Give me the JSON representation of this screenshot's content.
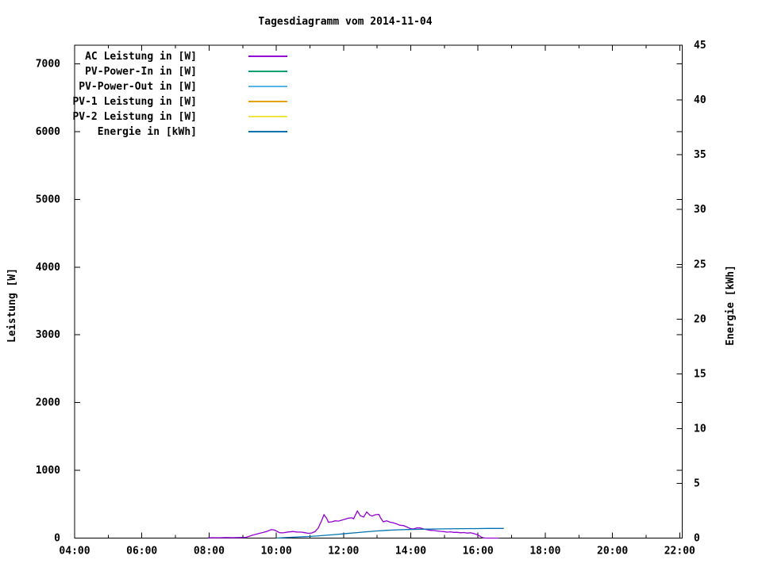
{
  "title": "Tagesdiagramm vom 2014-11-04",
  "chart_data": {
    "type": "line",
    "title": "Tagesdiagramm vom 2014-11-04",
    "grid": false,
    "legend_position": "top-left-inside",
    "x_axis": {
      "unit": "time HH:MM",
      "range_hours": [
        4,
        22.1
      ],
      "major_ticks": [
        "04:00",
        "06:00",
        "08:00",
        "10:00",
        "12:00",
        "14:00",
        "16:00",
        "18:00",
        "20:00",
        "22:00"
      ],
      "major_tick_hours": [
        4,
        6,
        8,
        10,
        12,
        14,
        16,
        18,
        20,
        22
      ],
      "minor_tick_hours": [
        5,
        7,
        9,
        11,
        13,
        15,
        17,
        19,
        21
      ]
    },
    "y_left": {
      "label": "Leistung [W]",
      "range": [
        0,
        7290
      ],
      "ticks": [
        0,
        1000,
        2000,
        3000,
        4000,
        5000,
        6000,
        7000
      ]
    },
    "y_right": {
      "label": "Energie [kWh]",
      "range": [
        0,
        45
      ],
      "ticks": [
        0,
        5,
        10,
        15,
        20,
        25,
        30,
        35,
        40,
        45
      ]
    },
    "series": [
      {
        "name": "AC Leistung in [W]",
        "color": "#9400d3",
        "axis": "left",
        "points": [
          [
            7.97,
            3
          ],
          [
            8.1,
            6
          ],
          [
            8.3,
            5
          ],
          [
            8.5,
            8
          ],
          [
            8.7,
            6
          ],
          [
            8.9,
            8
          ],
          [
            9.1,
            12
          ],
          [
            9.3,
            45
          ],
          [
            9.5,
            70
          ],
          [
            9.7,
            95
          ],
          [
            9.85,
            125
          ],
          [
            9.95,
            118
          ],
          [
            10.1,
            80
          ],
          [
            10.2,
            77
          ],
          [
            10.35,
            90
          ],
          [
            10.5,
            97
          ],
          [
            10.6,
            90
          ],
          [
            10.75,
            88
          ],
          [
            10.85,
            80
          ],
          [
            10.95,
            70
          ],
          [
            11.05,
            75
          ],
          [
            11.15,
            95
          ],
          [
            11.25,
            150
          ],
          [
            11.35,
            260
          ],
          [
            11.42,
            345
          ],
          [
            11.5,
            290
          ],
          [
            11.55,
            235
          ],
          [
            11.65,
            240
          ],
          [
            11.75,
            255
          ],
          [
            11.85,
            250
          ],
          [
            11.95,
            265
          ],
          [
            12.05,
            280
          ],
          [
            12.15,
            295
          ],
          [
            12.25,
            300
          ],
          [
            12.3,
            285
          ],
          [
            12.41,
            400
          ],
          [
            12.5,
            330
          ],
          [
            12.6,
            310
          ],
          [
            12.69,
            385
          ],
          [
            12.78,
            340
          ],
          [
            12.85,
            325
          ],
          [
            12.95,
            345
          ],
          [
            13.05,
            350
          ],
          [
            13.1,
            300
          ],
          [
            13.18,
            240
          ],
          [
            13.28,
            255
          ],
          [
            13.38,
            235
          ],
          [
            13.48,
            225
          ],
          [
            13.58,
            210
          ],
          [
            13.68,
            190
          ],
          [
            13.78,
            185
          ],
          [
            13.88,
            165
          ],
          [
            13.98,
            140
          ],
          [
            14.08,
            135
          ],
          [
            14.18,
            150
          ],
          [
            14.28,
            150
          ],
          [
            14.38,
            135
          ],
          [
            14.48,
            125
          ],
          [
            14.58,
            115
          ],
          [
            14.68,
            112
          ],
          [
            14.78,
            105
          ],
          [
            14.88,
            100
          ],
          [
            14.98,
            96
          ],
          [
            15.08,
            88
          ],
          [
            15.18,
            92
          ],
          [
            15.28,
            84
          ],
          [
            15.38,
            86
          ],
          [
            15.48,
            78
          ],
          [
            15.58,
            82
          ],
          [
            15.68,
            74
          ],
          [
            15.78,
            78
          ],
          [
            15.88,
            65
          ],
          [
            15.98,
            50
          ],
          [
            16.05,
            30
          ],
          [
            16.1,
            15
          ],
          [
            16.15,
            5
          ],
          [
            16.2,
            1
          ],
          [
            16.3,
            0
          ],
          [
            16.45,
            0
          ],
          [
            16.61,
            0
          ]
        ]
      },
      {
        "name": "PV-Power-In in [W]",
        "color": "#009e73",
        "axis": "left",
        "points": []
      },
      {
        "name": "PV-Power-Out in [W]",
        "color": "#56b4e9",
        "axis": "left",
        "points": []
      },
      {
        "name": "PV-1 Leistung in [W]",
        "color": "#e69f00",
        "axis": "left",
        "points": []
      },
      {
        "name": "PV-2 Leistung in [W]",
        "color": "#f0e442",
        "axis": "left",
        "points": []
      },
      {
        "name": "Energie in [kWh]",
        "color": "#0072b2",
        "axis": "right",
        "points": [
          [
            10.0,
            0.0
          ],
          [
            10.3,
            0.05
          ],
          [
            10.6,
            0.1
          ],
          [
            10.9,
            0.14
          ],
          [
            11.2,
            0.19
          ],
          [
            11.5,
            0.26
          ],
          [
            11.8,
            0.33
          ],
          [
            12.1,
            0.42
          ],
          [
            12.4,
            0.5
          ],
          [
            12.7,
            0.58
          ],
          [
            13.0,
            0.65
          ],
          [
            13.3,
            0.71
          ],
          [
            13.6,
            0.75
          ],
          [
            13.9,
            0.78
          ],
          [
            14.2,
            0.8
          ],
          [
            14.5,
            0.82
          ],
          [
            15.0,
            0.84
          ],
          [
            15.5,
            0.86
          ],
          [
            16.0,
            0.87
          ],
          [
            16.3,
            0.88
          ],
          [
            16.77,
            0.88
          ]
        ]
      }
    ]
  }
}
